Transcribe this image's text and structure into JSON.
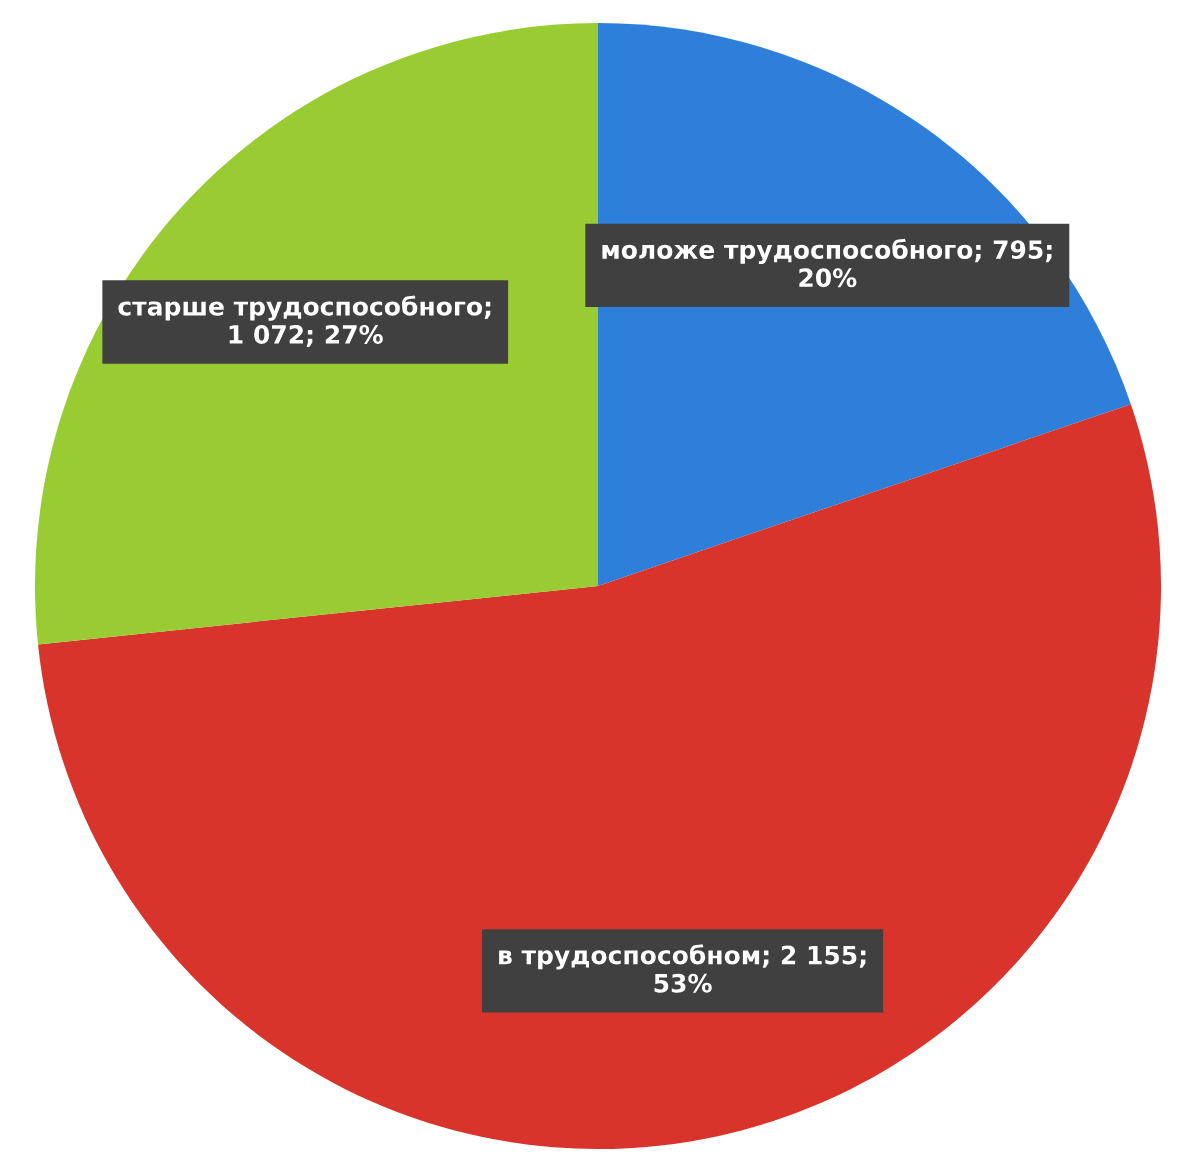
{
  "chart_data": {
    "type": "pie",
    "categories": [
      "моложе трудоспособного",
      "в трудоспособном",
      "старше трудоспособного"
    ],
    "values": [
      795,
      2155,
      1072
    ],
    "colors": [
      "#2e7fd9",
      "#d9342b",
      "#99cc33"
    ],
    "value_labels": [
      "; 795;\n20%",
      "; 2 155;\n53%",
      ";\n1 072; 27%"
    ]
  }
}
